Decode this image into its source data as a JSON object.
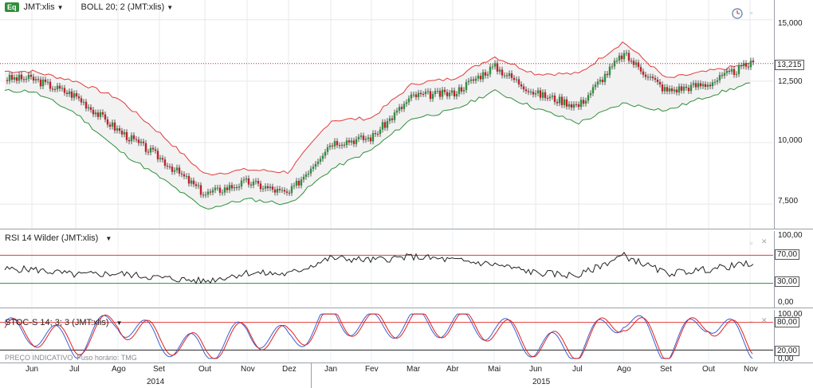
{
  "toolbar": {
    "eq_badge": "Eq",
    "symbol": "JMT:xlis",
    "indicator": "BOLL 20; 2 (JMT:xlis)"
  },
  "price_axis": {
    "ticks": [
      "15,000",
      "12,500",
      "10,000",
      "7,500"
    ],
    "last_price": "13,215"
  },
  "rsi_panel": {
    "title": "RSI 14 Wilder (JMT:xlis)",
    "ticks": [
      "100,00",
      "70,00",
      "30,00",
      "0,00"
    ]
  },
  "stoch_panel": {
    "title": "STOC-S 14; 3; 3 (JMT:xlis)",
    "ticks": [
      "100,00",
      "80,00",
      "20,00",
      "0,00"
    ]
  },
  "footer": {
    "indicative": "PREÇO INDICATIVO",
    "timezone": "Fuso horário: TMG"
  },
  "x_axis": {
    "months": [
      "Jun",
      "Jul",
      "Ago",
      "Set",
      "Out",
      "Nov",
      "Dez",
      "Jan",
      "Fev",
      "Mar",
      "Abr",
      "Mai",
      "Jun",
      "Jul",
      "Ago",
      "Set",
      "Out",
      "Nov"
    ],
    "years": [
      "2014",
      "2015"
    ]
  },
  "colors": {
    "up": "#2f8f3a",
    "down": "#c0202a",
    "upper_band": "#e23b3b",
    "lower_band": "#2f8f3a",
    "rsi_line": "#222222",
    "stoch_k": "#3a5fd0",
    "stoch_d": "#e02020",
    "last_price_line": "#d42020"
  },
  "chart_data": [
    {
      "type": "line",
      "title": "JMT:xlis",
      "indicator": "BOLL 20; 2",
      "x": [
        "2014-06",
        "2014-07",
        "2014-08",
        "2014-09",
        "2014-10",
        "2014-11",
        "2014-12",
        "2015-01",
        "2015-02",
        "2015-03",
        "2015-04",
        "2015-05",
        "2015-06",
        "2015-07",
        "2015-08",
        "2015-09",
        "2015-10",
        "2015-11"
      ],
      "series": [
        {
          "name": "Close",
          "values": [
            12.6,
            11.9,
            10.5,
            9.4,
            7.9,
            8.4,
            7.9,
            10.0,
            10.2,
            11.9,
            12.0,
            13.1,
            12.0,
            11.5,
            13.6,
            12.1,
            12.4,
            13.2
          ]
        },
        {
          "name": "Upper band",
          "values": [
            12.9,
            12.5,
            11.8,
            10.4,
            8.7,
            8.9,
            8.8,
            10.9,
            11.0,
            12.4,
            12.6,
            13.5,
            12.8,
            12.8,
            14.1,
            12.6,
            12.9,
            13.2
          ]
        },
        {
          "name": "Lower band",
          "values": [
            12.1,
            11.2,
            9.7,
            8.6,
            7.3,
            7.7,
            7.5,
            8.9,
            9.7,
            11.0,
            11.3,
            12.1,
            11.4,
            10.8,
            11.6,
            11.3,
            11.9,
            12.4
          ]
        }
      ],
      "ylim": [
        6.5,
        15.8
      ],
      "y_ticks": [
        7.5,
        10.0,
        12.5,
        15.0
      ],
      "last_price": 13.215
    },
    {
      "type": "line",
      "title": "RSI 14 Wilder (JMT:xlis)",
      "series": [
        {
          "name": "RSI",
          "values": [
            50,
            42,
            44,
            38,
            33,
            45,
            43,
            66,
            63,
            68,
            63,
            57,
            45,
            41,
            70,
            44,
            50,
            58
          ]
        }
      ],
      "ylim": [
        0,
        100
      ],
      "y_ticks": [
        0,
        30,
        70,
        100
      ],
      "reference_lines": [
        30,
        70
      ]
    },
    {
      "type": "line",
      "title": "STOC-S 14; 3; 3 (JMT:xlis)",
      "series": [
        {
          "name": "%K",
          "values": [
            60,
            30,
            85,
            40,
            20,
            60,
            40,
            90,
            70,
            80,
            75,
            70,
            30,
            25,
            95,
            20,
            90,
            30
          ]
        },
        {
          "name": "%D",
          "values": [
            58,
            35,
            80,
            45,
            22,
            55,
            42,
            88,
            72,
            78,
            76,
            68,
            33,
            28,
            92,
            24,
            86,
            35
          ]
        }
      ],
      "ylim": [
        0,
        100
      ],
      "y_ticks": [
        0,
        20,
        80,
        100
      ],
      "reference_lines": [
        20,
        80
      ]
    }
  ]
}
